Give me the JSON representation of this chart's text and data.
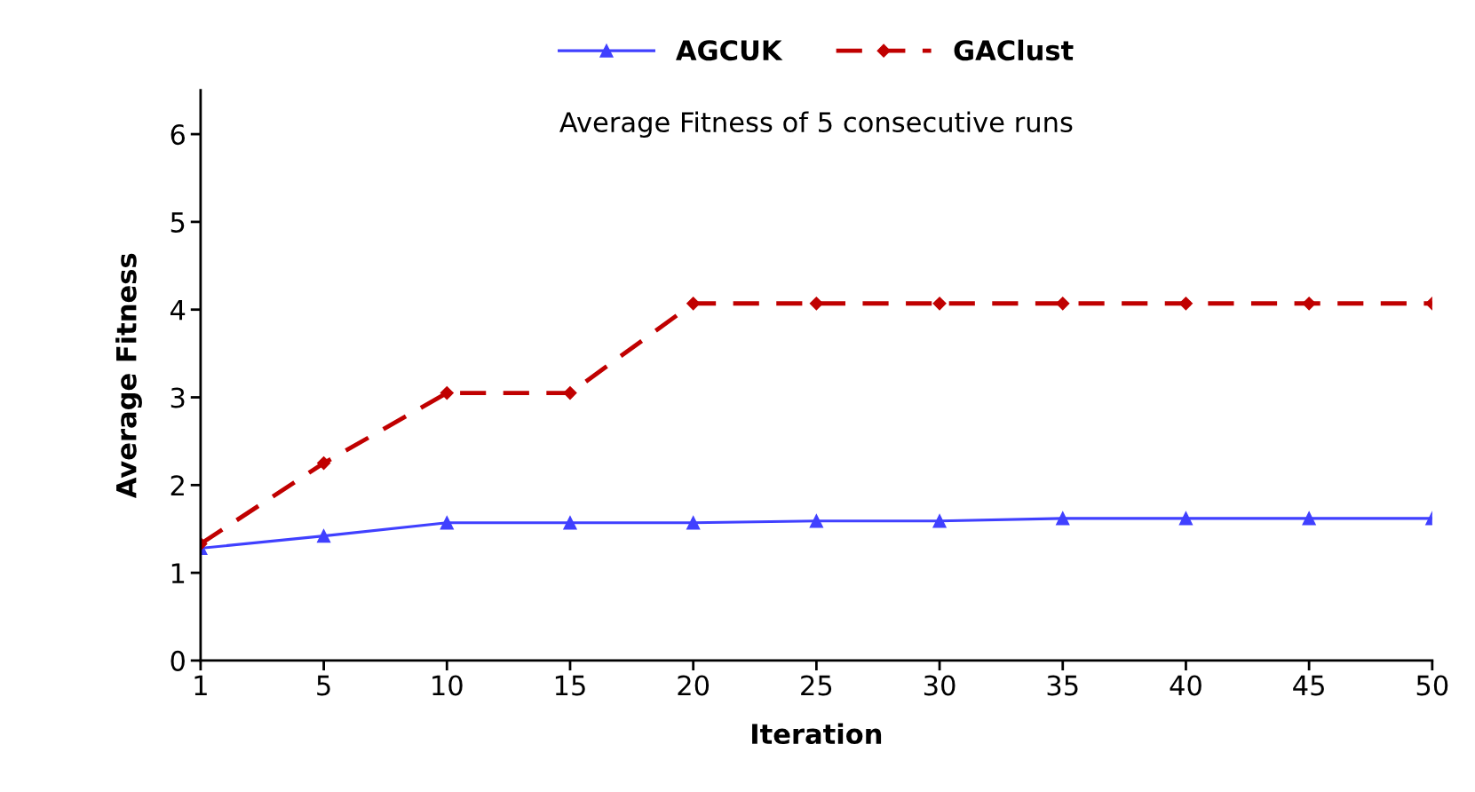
{
  "chart_data": {
    "type": "line",
    "title": "Average Fitness of 5 consecutive runs",
    "xlabel": "Iteration",
    "ylabel": "Average Fitness",
    "categories": [
      "1",
      "5",
      "10",
      "15",
      "20",
      "25",
      "30",
      "35",
      "40",
      "45",
      "50"
    ],
    "series": [
      {
        "name": "AGCUK",
        "color": "#4040ff",
        "marker": "triangle",
        "line_style": "solid",
        "values": [
          1.28,
          1.42,
          1.57,
          1.57,
          1.57,
          1.59,
          1.59,
          1.62,
          1.62,
          1.62,
          1.62
        ]
      },
      {
        "name": "GAClust",
        "color": "#c00000",
        "marker": "diamond",
        "line_style": "dashed",
        "values": [
          1.33,
          2.25,
          3.05,
          3.05,
          4.07,
          4.07,
          4.07,
          4.07,
          4.07,
          4.07,
          4.07
        ]
      }
    ],
    "ylim": [
      0,
      6.5
    ],
    "yticks": [
      0,
      1,
      2,
      3,
      4,
      5,
      6
    ],
    "grid": false,
    "legend": "top"
  }
}
